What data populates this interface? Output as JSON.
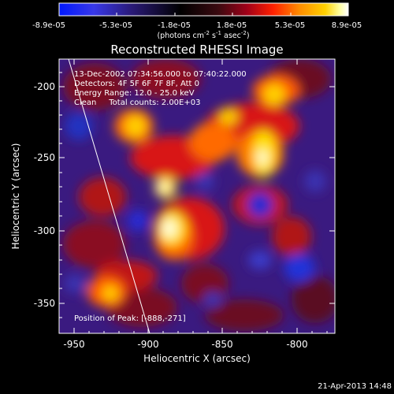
{
  "colorbar": {
    "tick_labels": [
      "-8.9e-05",
      "-5.3e-05",
      "-1.8e-05",
      "1.8e-05",
      "5.3e-05",
      "8.9e-05"
    ],
    "unit_main": "(photons cm",
    "unit_exp1": "-2",
    "unit_mid": " s",
    "unit_exp2": "-1",
    "unit_mid2": " asec",
    "unit_exp3": "-2",
    "unit_end": ")",
    "colors": [
      "#0018ff",
      "#3838e8",
      "#2a1a78",
      "#000000",
      "#3a0a10",
      "#a00018",
      "#ff2000",
      "#ff8c00",
      "#ffd000",
      "#ffffa0",
      "#ffffff"
    ]
  },
  "plot": {
    "title": "Reconstructed RHESSI Image",
    "xlabel": "Heliocentric X (arcsec)",
    "ylabel": "Heliocentric Y (arcsec)",
    "x_ticks": [
      "-950",
      "-900",
      "-850",
      "-800"
    ],
    "y_ticks": [
      "-200",
      "-250",
      "-300",
      "-350"
    ],
    "xlim": [
      -965,
      -822
    ],
    "ylim": [
      -373,
      -181
    ]
  },
  "info": {
    "time_range": "13-Dec-2002 07:34:56.000 to 07:40:22.000",
    "detectors": "Detectors: 4F 5F 6F 7F 8F, Att 0",
    "energy": "Energy Range: 12.0 - 25.0 keV",
    "clean": "Clean     Total counts: 2.00E+03",
    "peak": "Position of Peak: [-888,-271]"
  },
  "footer": {
    "date": "21-Apr-2013 14:48"
  }
}
